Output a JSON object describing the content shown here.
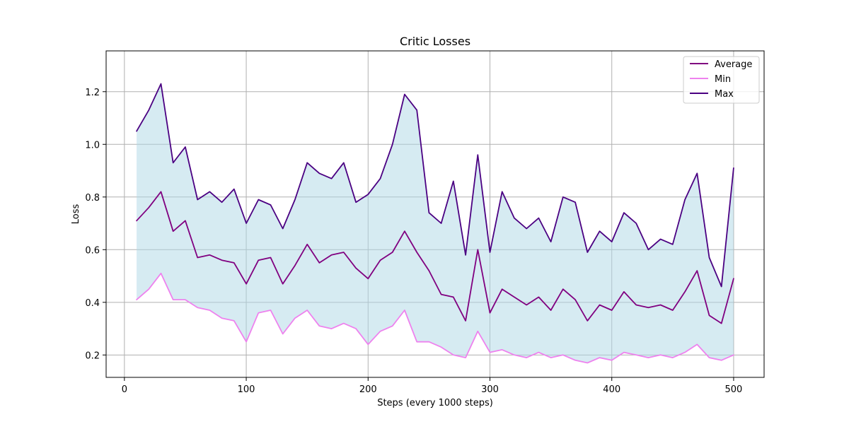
{
  "chart_data": {
    "type": "line",
    "title": "Critic Losses",
    "xlabel": "Steps (every 1000 steps)",
    "ylabel": "Loss",
    "xlim": [
      -15,
      525
    ],
    "ylim": [
      0.115,
      1.355
    ],
    "xticks": [
      0,
      100,
      200,
      300,
      400,
      500
    ],
    "xtick_labels": [
      "0",
      "100",
      "200",
      "300",
      "400",
      "500"
    ],
    "yticks": [
      0.2,
      0.4,
      0.6,
      0.8,
      1.0,
      1.2
    ],
    "ytick_labels": [
      "0.2",
      "0.4",
      "0.6",
      "0.8",
      "1.0",
      "1.2"
    ],
    "grid": true,
    "legend_position": "top-right",
    "fill_between": {
      "lower": "Min",
      "upper": "Max",
      "color": "#add8e6"
    },
    "x": [
      10,
      20,
      30,
      40,
      50,
      60,
      70,
      80,
      90,
      100,
      110,
      120,
      130,
      140,
      150,
      160,
      170,
      180,
      190,
      200,
      210,
      220,
      230,
      240,
      250,
      260,
      270,
      280,
      290,
      300,
      310,
      320,
      330,
      340,
      350,
      360,
      370,
      380,
      390,
      400,
      410,
      420,
      430,
      440,
      450,
      460,
      470,
      480,
      490,
      500
    ],
    "series": [
      {
        "name": "Average",
        "color": "#800080",
        "values": [
          0.71,
          0.76,
          0.82,
          0.67,
          0.71,
          0.57,
          0.58,
          0.56,
          0.55,
          0.47,
          0.56,
          0.57,
          0.47,
          0.54,
          0.62,
          0.55,
          0.58,
          0.59,
          0.53,
          0.49,
          0.56,
          0.59,
          0.67,
          0.59,
          0.52,
          0.43,
          0.42,
          0.33,
          0.6,
          0.36,
          0.45,
          0.42,
          0.39,
          0.42,
          0.37,
          0.45,
          0.41,
          0.33,
          0.39,
          0.37,
          0.44,
          0.39,
          0.38,
          0.39,
          0.37,
          0.44,
          0.52,
          0.35,
          0.32,
          0.49
        ]
      },
      {
        "name": "Min",
        "color": "#ee82ee",
        "values": [
          0.41,
          0.45,
          0.51,
          0.41,
          0.41,
          0.38,
          0.37,
          0.34,
          0.33,
          0.25,
          0.36,
          0.37,
          0.28,
          0.34,
          0.37,
          0.31,
          0.3,
          0.32,
          0.3,
          0.24,
          0.29,
          0.31,
          0.37,
          0.25,
          0.25,
          0.23,
          0.2,
          0.19,
          0.29,
          0.21,
          0.22,
          0.2,
          0.19,
          0.21,
          0.19,
          0.2,
          0.18,
          0.17,
          0.19,
          0.18,
          0.21,
          0.2,
          0.19,
          0.2,
          0.19,
          0.21,
          0.24,
          0.19,
          0.18,
          0.2
        ]
      },
      {
        "name": "Max",
        "color": "#4b0082",
        "values": [
          1.05,
          1.13,
          1.23,
          0.93,
          0.99,
          0.79,
          0.82,
          0.78,
          0.83,
          0.7,
          0.79,
          0.77,
          0.68,
          0.79,
          0.93,
          0.89,
          0.87,
          0.93,
          0.78,
          0.81,
          0.87,
          1.0,
          1.19,
          1.13,
          0.74,
          0.7,
          0.86,
          0.58,
          0.96,
          0.59,
          0.82,
          0.72,
          0.68,
          0.72,
          0.63,
          0.8,
          0.78,
          0.59,
          0.67,
          0.63,
          0.74,
          0.7,
          0.6,
          0.64,
          0.62,
          0.79,
          0.89,
          0.57,
          0.46,
          0.91
        ]
      }
    ]
  }
}
